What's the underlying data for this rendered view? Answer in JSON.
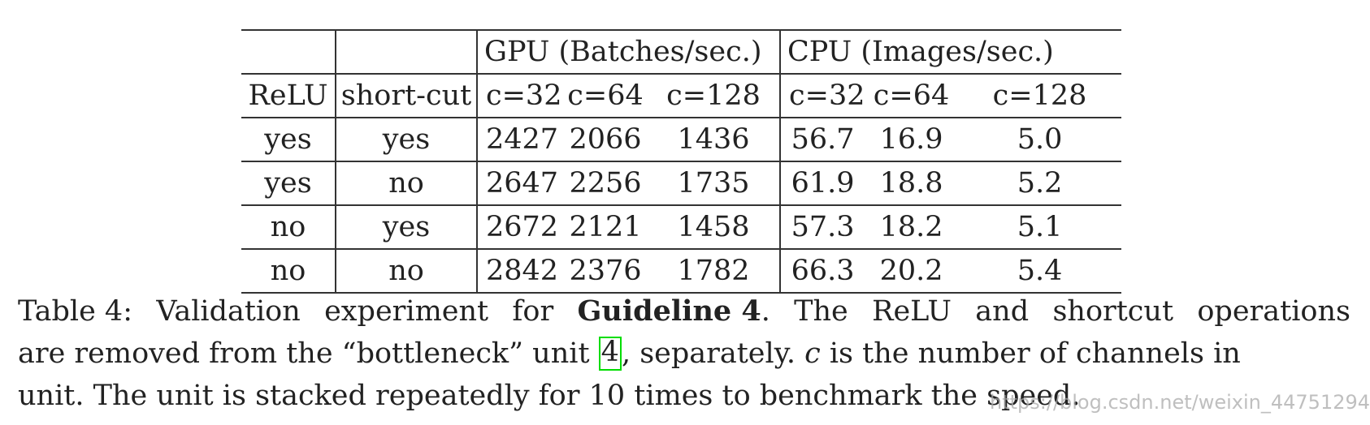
{
  "table": {
    "group_headers": {
      "gpu": "GPU (Batches/sec.)",
      "cpu": "CPU (Images/sec.)"
    },
    "column_headers": {
      "relu": "ReLU",
      "shortcut": "short-cut",
      "gpu_c32": "c=32",
      "gpu_c64": "c=64",
      "gpu_c128": "c=128",
      "cpu_c32": "c=32",
      "cpu_c64": "c=64",
      "cpu_c128": "c=128"
    },
    "rows": [
      {
        "relu": "yes",
        "shortcut": "yes",
        "gpu_c32": "2427",
        "gpu_c64": "2066",
        "gpu_c128": "1436",
        "cpu_c32": "56.7",
        "cpu_c64": "16.9",
        "cpu_c128": "5.0"
      },
      {
        "relu": "yes",
        "shortcut": "no",
        "gpu_c32": "2647",
        "gpu_c64": "2256",
        "gpu_c128": "1735",
        "cpu_c32": "61.9",
        "cpu_c64": "18.8",
        "cpu_c128": "5.2"
      },
      {
        "relu": "no",
        "shortcut": "yes",
        "gpu_c32": "2672",
        "gpu_c64": "2121",
        "gpu_c128": "1458",
        "cpu_c32": "57.3",
        "cpu_c64": "18.2",
        "cpu_c128": "5.1"
      },
      {
        "relu": "no",
        "shortcut": "no",
        "gpu_c32": "2842",
        "gpu_c64": "2376",
        "gpu_c128": "1782",
        "cpu_c32": "66.3",
        "cpu_c64": "20.2",
        "cpu_c128": "5.4"
      }
    ]
  },
  "caption": {
    "label": "Table 4:",
    "line1_words_a": [
      "Validation",
      "experiment",
      "for"
    ],
    "guideline_bold": "Guideline 4",
    "line1_after_bold": ".",
    "line1_words_b": [
      "The",
      "ReLU",
      "and",
      "shortcut",
      "operations"
    ],
    "line2_before_cite": "are removed from the “bottleneck” unit",
    "cite_number": "4",
    "line2_after_cite": ", separately.",
    "variable_c": "c",
    "line2_end": "is the number of channels in",
    "line3": "unit. The unit is stacked repeatedly for 10 times to benchmark the speed."
  },
  "watermark": "https://blog.csdn.net/weixin_44751294"
}
